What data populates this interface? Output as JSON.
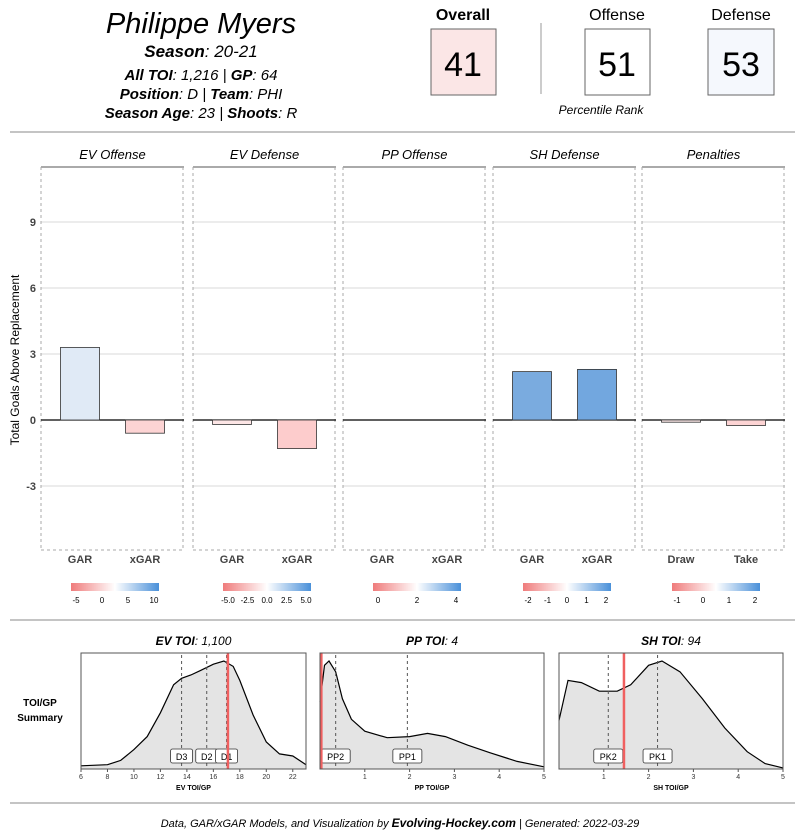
{
  "player": {
    "name": "Philippe Myers",
    "season_label": "Season",
    "season": "20-21",
    "toi_label": "All TOI",
    "toi": "1,216",
    "gp_label": "GP",
    "gp": "64",
    "position_label": "Position",
    "position": "D",
    "team_label": "Team",
    "team": "PHI",
    "age_label": "Season Age",
    "age": "23",
    "shoots_label": "Shoots",
    "shoots": "R"
  },
  "ranks": {
    "overall_label": "Overall",
    "overall": "41",
    "overall_color": "#fbe6e6",
    "offense_label": "Offense",
    "offense": "51",
    "offense_color": "#ffffff",
    "defense_label": "Defense",
    "defense": "53",
    "defense_color": "#f5f8fd",
    "caption": "Percentile Rank"
  },
  "chart_data": [
    {
      "type": "bar",
      "ylabel": "Total Goals Above Replacement",
      "yticks": [
        9,
        6,
        3,
        0,
        -3
      ],
      "ylim": [
        -6,
        11.5
      ],
      "grid": true,
      "panels": [
        {
          "name": "EV Offense",
          "categories": [
            "GAR",
            "xGAR"
          ],
          "values": [
            3.3,
            -0.6
          ],
          "colors": [
            "#e0eaf6",
            "#fdd4d4"
          ],
          "legend_ticks": [
            "-5",
            "0",
            "5",
            "10"
          ]
        },
        {
          "name": "EV Defense",
          "categories": [
            "GAR",
            "xGAR"
          ],
          "values": [
            -0.2,
            -1.3
          ],
          "colors": [
            "#fde6e6",
            "#fdcccc"
          ],
          "legend_ticks": [
            "-5.0",
            "-2.5",
            "0.0",
            "2.5",
            "5.0"
          ]
        },
        {
          "name": "PP Offense",
          "categories": [
            "GAR",
            "xGAR"
          ],
          "values": [
            0,
            0
          ],
          "colors": [
            "#ffffff",
            "#ffffff"
          ],
          "legend_ticks": [
            "0",
            "2",
            "4"
          ]
        },
        {
          "name": "SH Defense",
          "categories": [
            "GAR",
            "xGAR"
          ],
          "values": [
            2.2,
            2.3
          ],
          "colors": [
            "#7aabdf",
            "#72a7df"
          ],
          "legend_ticks": [
            "-2",
            "-1",
            "0",
            "1",
            "2"
          ]
        },
        {
          "name": "Penalties",
          "categories": [
            "Draw",
            "Take"
          ],
          "values": [
            -0.1,
            -0.25
          ],
          "colors": [
            "#fde9e9",
            "#fdd4d4"
          ],
          "legend_ticks": [
            "-1",
            "0",
            "1",
            "2"
          ]
        }
      ]
    },
    {
      "type": "area",
      "summary_label_line1": "TOI/GP",
      "summary_label_line2": "Summary",
      "panels": [
        {
          "title_label": "EV TOI",
          "title_value": "1,100",
          "xlabel": "EV TOI/GP",
          "xlim": [
            6,
            23
          ],
          "xticks": [
            6,
            8,
            10,
            12,
            14,
            16,
            18,
            20,
            22
          ],
          "player_value": 17.1,
          "markers": [
            {
              "label": "D3",
              "x": 13.6
            },
            {
              "label": "D2",
              "x": 15.5
            },
            {
              "label": "D1",
              "x": 17.0
            }
          ],
          "density": [
            [
              6,
              0.03
            ],
            [
              8,
              0.04
            ],
            [
              9,
              0.08
            ],
            [
              10,
              0.18
            ],
            [
              11,
              0.3
            ],
            [
              12,
              0.52
            ],
            [
              13,
              0.78
            ],
            [
              13.6,
              0.84
            ],
            [
              14.3,
              0.87
            ],
            [
              15,
              0.91
            ],
            [
              16,
              0.97
            ],
            [
              16.8,
              1.0
            ],
            [
              17.5,
              0.95
            ],
            [
              18,
              0.82
            ],
            [
              19,
              0.5
            ],
            [
              20,
              0.25
            ],
            [
              21,
              0.14
            ],
            [
              22,
              0.12
            ],
            [
              23,
              0.04
            ]
          ]
        },
        {
          "title_label": "PP TOI",
          "title_value": "4",
          "xlabel": "PP TOI/GP",
          "xlim": [
            0,
            5
          ],
          "xticks": [
            1,
            2,
            3,
            4,
            5
          ],
          "player_value": 0.03,
          "markers": [
            {
              "label": "PP2",
              "x": 0.35
            },
            {
              "label": "PP1",
              "x": 1.95
            }
          ],
          "density": [
            [
              0,
              0.62
            ],
            [
              0.1,
              0.96
            ],
            [
              0.2,
              1.0
            ],
            [
              0.35,
              0.9
            ],
            [
              0.5,
              0.65
            ],
            [
              0.7,
              0.46
            ],
            [
              1.0,
              0.35
            ],
            [
              1.5,
              0.29
            ],
            [
              2.0,
              0.3
            ],
            [
              2.4,
              0.33
            ],
            [
              2.8,
              0.3
            ],
            [
              3.3,
              0.22
            ],
            [
              3.8,
              0.15
            ],
            [
              4.4,
              0.07
            ],
            [
              5,
              0.02
            ]
          ]
        },
        {
          "title_label": "SH TOI",
          "title_value": "94",
          "xlabel": "SH TOI/GP",
          "xlim": [
            0,
            5
          ],
          "xticks": [
            1,
            2,
            3,
            4,
            5
          ],
          "player_value": 1.45,
          "markers": [
            {
              "label": "PK2",
              "x": 1.1
            },
            {
              "label": "PK1",
              "x": 2.2
            }
          ],
          "density": [
            [
              0,
              0.45
            ],
            [
              0.2,
              0.82
            ],
            [
              0.5,
              0.8
            ],
            [
              0.9,
              0.72
            ],
            [
              1.3,
              0.72
            ],
            [
              1.6,
              0.78
            ],
            [
              2.0,
              0.96
            ],
            [
              2.3,
              1.0
            ],
            [
              2.7,
              0.9
            ],
            [
              3.2,
              0.65
            ],
            [
              3.7,
              0.38
            ],
            [
              4.2,
              0.16
            ],
            [
              4.6,
              0.05
            ],
            [
              5,
              0.01
            ]
          ]
        }
      ]
    }
  ],
  "footer": {
    "prefix": "Data, GAR/xGAR Models, and Visualization by ",
    "brand": "Evolving-Hockey.com",
    "suffix": " | Generated: 2022-03-29"
  }
}
